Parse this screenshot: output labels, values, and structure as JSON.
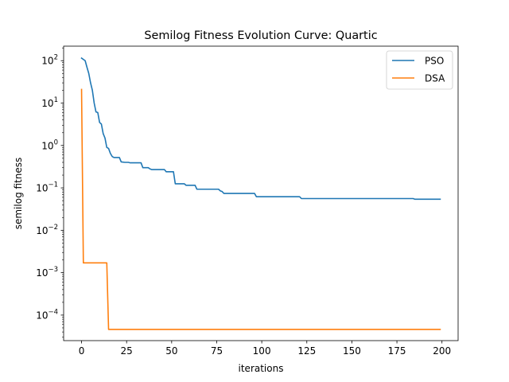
{
  "chart_data": {
    "type": "line",
    "title": "Semilog Fitness Evolution Curve: Quartic",
    "xlabel": "iterations",
    "ylabel": "semilog fitness",
    "xlim": [
      -9.95,
      208.95
    ],
    "ylim": [
      2.5e-05,
      220
    ],
    "yscale": "log",
    "grid": false,
    "legend_position": "top-right",
    "xticks": [
      0,
      25,
      50,
      75,
      100,
      125,
      150,
      175,
      200
    ],
    "xtick_labels": [
      "0",
      "25",
      "50",
      "75",
      "100",
      "125",
      "150",
      "175",
      "200"
    ],
    "yticks": [
      {
        "value": 100,
        "base": "10",
        "exp": "2"
      },
      {
        "value": 10,
        "base": "10",
        "exp": "1"
      },
      {
        "value": 1,
        "base": "10",
        "exp": "0"
      },
      {
        "value": 0.1,
        "base": "10",
        "exp": "−1"
      },
      {
        "value": 0.01,
        "base": "10",
        "exp": "−2"
      },
      {
        "value": 0.001,
        "base": "10",
        "exp": "−3"
      },
      {
        "value": 0.0001,
        "base": "10",
        "exp": "−4"
      }
    ],
    "series": [
      {
        "name": "PSO",
        "color": "#1f77b4",
        "points": [
          [
            0,
            115
          ],
          [
            2,
            100
          ],
          [
            3,
            70
          ],
          [
            4,
            50
          ],
          [
            5,
            30
          ],
          [
            6,
            20
          ],
          [
            7,
            10
          ],
          [
            8,
            6.2
          ],
          [
            9,
            6.0
          ],
          [
            10,
            3.5
          ],
          [
            11,
            3.2
          ],
          [
            12,
            1.9
          ],
          [
            13,
            1.5
          ],
          [
            14,
            0.9
          ],
          [
            15,
            0.85
          ],
          [
            16,
            0.65
          ],
          [
            17,
            0.55
          ],
          [
            18,
            0.52
          ],
          [
            21,
            0.52
          ],
          [
            22,
            0.41
          ],
          [
            24,
            0.4
          ],
          [
            26,
            0.4
          ],
          [
            27,
            0.39
          ],
          [
            33,
            0.39
          ],
          [
            34,
            0.3
          ],
          [
            37,
            0.3
          ],
          [
            38,
            0.28
          ],
          [
            39,
            0.27
          ],
          [
            46,
            0.27
          ],
          [
            47,
            0.24
          ],
          [
            51,
            0.24
          ],
          [
            52,
            0.125
          ],
          [
            57,
            0.125
          ],
          [
            58,
            0.115
          ],
          [
            63,
            0.115
          ],
          [
            64,
            0.093
          ],
          [
            76,
            0.093
          ],
          [
            77,
            0.085
          ],
          [
            78,
            0.082
          ],
          [
            79,
            0.074
          ],
          [
            96,
            0.074
          ],
          [
            97,
            0.062
          ],
          [
            121,
            0.062
          ],
          [
            122,
            0.056
          ],
          [
            184,
            0.056
          ],
          [
            185,
            0.054
          ],
          [
            199,
            0.054
          ]
        ]
      },
      {
        "name": "DSA",
        "color": "#ff7f0e",
        "points": [
          [
            0,
            21
          ],
          [
            1,
            0.0017
          ],
          [
            14,
            0.0017
          ],
          [
            15,
            4.6e-05
          ],
          [
            199,
            4.6e-05
          ]
        ]
      }
    ]
  }
}
